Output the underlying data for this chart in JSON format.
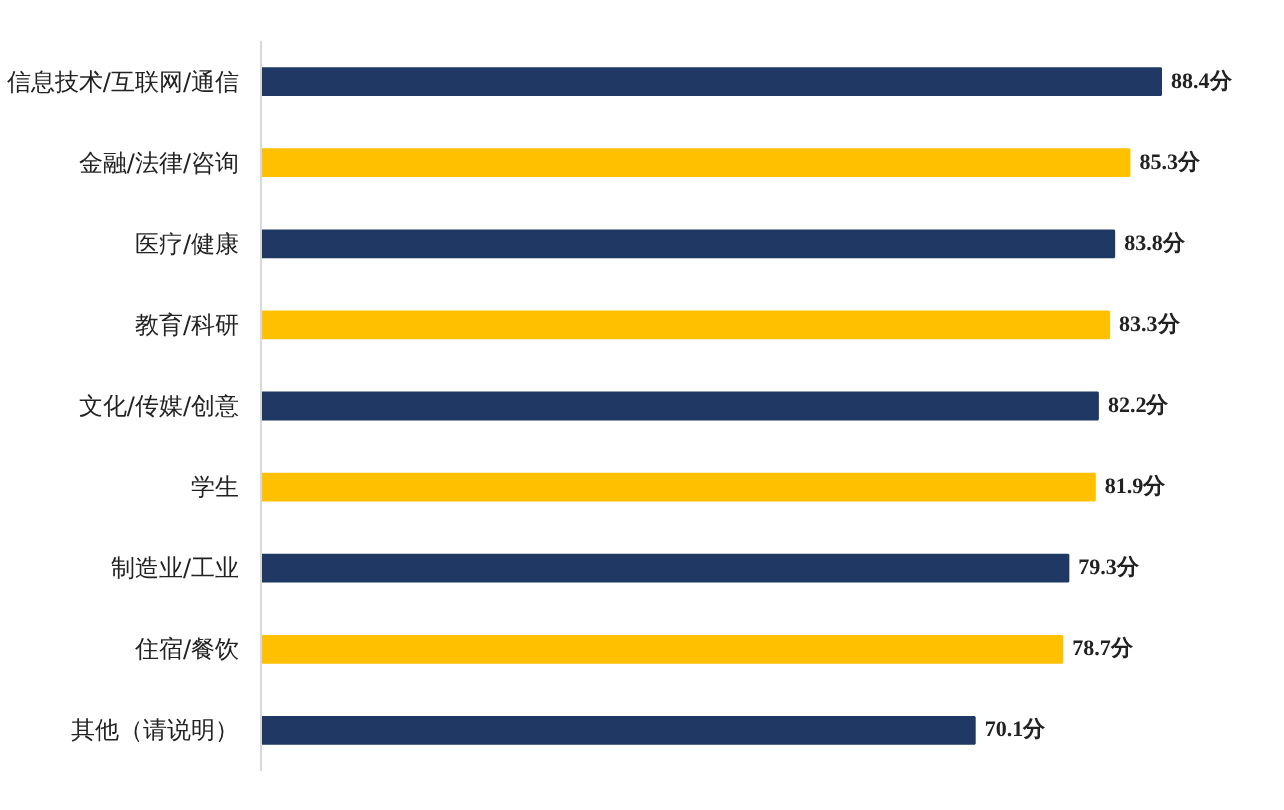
{
  "chart_data": {
    "type": "bar",
    "orientation": "horizontal",
    "categories": [
      "信息技术/互联网/通信",
      "金融/法律/咨询",
      "医疗/健康",
      "教育/科研",
      "文化/传媒/创意",
      "学生",
      "制造业/工业",
      "住宿/餐饮",
      "其他（请说明）"
    ],
    "values": [
      88.4,
      85.3,
      83.8,
      83.3,
      82.2,
      81.9,
      79.3,
      78.7,
      70.1
    ],
    "colors": [
      "#1f3864",
      "#ffc000",
      "#1f3864",
      "#ffc000",
      "#1f3864",
      "#ffc000",
      "#1f3864",
      "#ffc000",
      "#1f3864"
    ],
    "value_labels": [
      "88.4分",
      "85.3分",
      "83.8分",
      "83.3分",
      "82.2分",
      "81.9分",
      "79.3分",
      "78.7分",
      "70.1分"
    ],
    "tick_labels": "y",
    "grid": false
  }
}
